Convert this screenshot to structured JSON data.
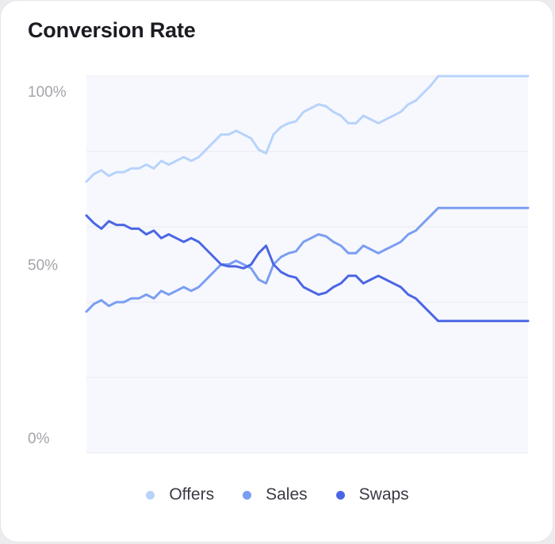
{
  "title": "Conversion Rate",
  "colors": {
    "offers": "#b7d3fb",
    "sales": "#7a9ef2",
    "swaps": "#4b66e4",
    "plot_background": "#f7f8fe",
    "grid": "#eaeaf1",
    "tick_label": "#a3a3ab"
  },
  "chart_data": {
    "type": "line",
    "title": "Conversion Rate",
    "xlabel": "",
    "ylabel": "",
    "ylim": [
      0,
      100
    ],
    "y_ticks": [
      0,
      50,
      100
    ],
    "y_tick_labels": [
      "0%",
      "50%",
      "100%"
    ],
    "grid": true,
    "legend_position": "bottom-center",
    "x": [
      0,
      1,
      2,
      3,
      4,
      5,
      6,
      7,
      8,
      9,
      10,
      11,
      12,
      13,
      14,
      15,
      16,
      17,
      18,
      19,
      20,
      21,
      22,
      23,
      24,
      25,
      26,
      27,
      28,
      29,
      30,
      31,
      32,
      33,
      34,
      35,
      36,
      37,
      38,
      39,
      40,
      41,
      42,
      43,
      44,
      45,
      46,
      47,
      48,
      49,
      50,
      51,
      52,
      53,
      54,
      55,
      56,
      57,
      58,
      59
    ],
    "series": [
      {
        "name": "Offers",
        "color": "#b7d3fb",
        "values": [
          72.0,
          74.0,
          75.0,
          73.5,
          74.5,
          74.5,
          75.5,
          75.5,
          76.5,
          75.5,
          77.5,
          76.5,
          77.5,
          78.5,
          77.5,
          78.5,
          80.5,
          82.5,
          84.5,
          84.5,
          85.5,
          84.5,
          83.5,
          80.5,
          79.5,
          84.5,
          86.5,
          87.5,
          88.0,
          90.5,
          91.5,
          92.5,
          92.0,
          90.5,
          89.5,
          87.5,
          87.5,
          89.5,
          88.5,
          87.5,
          88.5,
          89.5,
          90.5,
          92.5,
          93.5,
          95.5,
          97.5,
          100.0,
          100.0,
          100.0,
          100.0,
          100.0,
          100.0,
          100.0,
          100.0,
          100.0,
          100.0,
          100.0,
          100.0,
          100.0
        ]
      },
      {
        "name": "Sales",
        "color": "#7a9ef2",
        "values": [
          37.5,
          39.5,
          40.5,
          39.0,
          40.0,
          40.0,
          41.0,
          41.0,
          42.0,
          41.0,
          43.0,
          42.0,
          43.0,
          44.0,
          43.0,
          44.0,
          46.0,
          48.0,
          50.0,
          50.0,
          51.0,
          50.0,
          49.0,
          46.0,
          45.0,
          50.0,
          52.0,
          53.0,
          53.5,
          56.0,
          57.0,
          58.0,
          57.5,
          56.0,
          55.0,
          53.0,
          53.0,
          55.0,
          54.0,
          53.0,
          54.0,
          55.0,
          56.0,
          58.0,
          59.0,
          61.0,
          63.0,
          65.0,
          65.0,
          65.0,
          65.0,
          65.0,
          65.0,
          65.0,
          65.0,
          65.0,
          65.0,
          65.0,
          65.0,
          65.0
        ]
      },
      {
        "name": "Swaps",
        "color": "#4b66e4",
        "values": [
          63.0,
          61.0,
          59.5,
          61.5,
          60.5,
          60.5,
          59.5,
          59.5,
          58.0,
          59.0,
          57.0,
          58.0,
          57.0,
          56.0,
          57.0,
          56.0,
          54.0,
          52.0,
          50.0,
          49.5,
          49.5,
          49.0,
          50.0,
          53.0,
          55.0,
          50.0,
          48.0,
          47.0,
          46.5,
          44.0,
          43.0,
          42.0,
          42.5,
          44.0,
          45.0,
          47.0,
          47.0,
          45.0,
          46.0,
          47.0,
          46.0,
          45.0,
          44.0,
          42.0,
          41.0,
          39.0,
          37.0,
          35.0,
          35.0,
          35.0,
          35.0,
          35.0,
          35.0,
          35.0,
          35.0,
          35.0,
          35.0,
          35.0,
          35.0,
          35.0
        ]
      }
    ]
  }
}
